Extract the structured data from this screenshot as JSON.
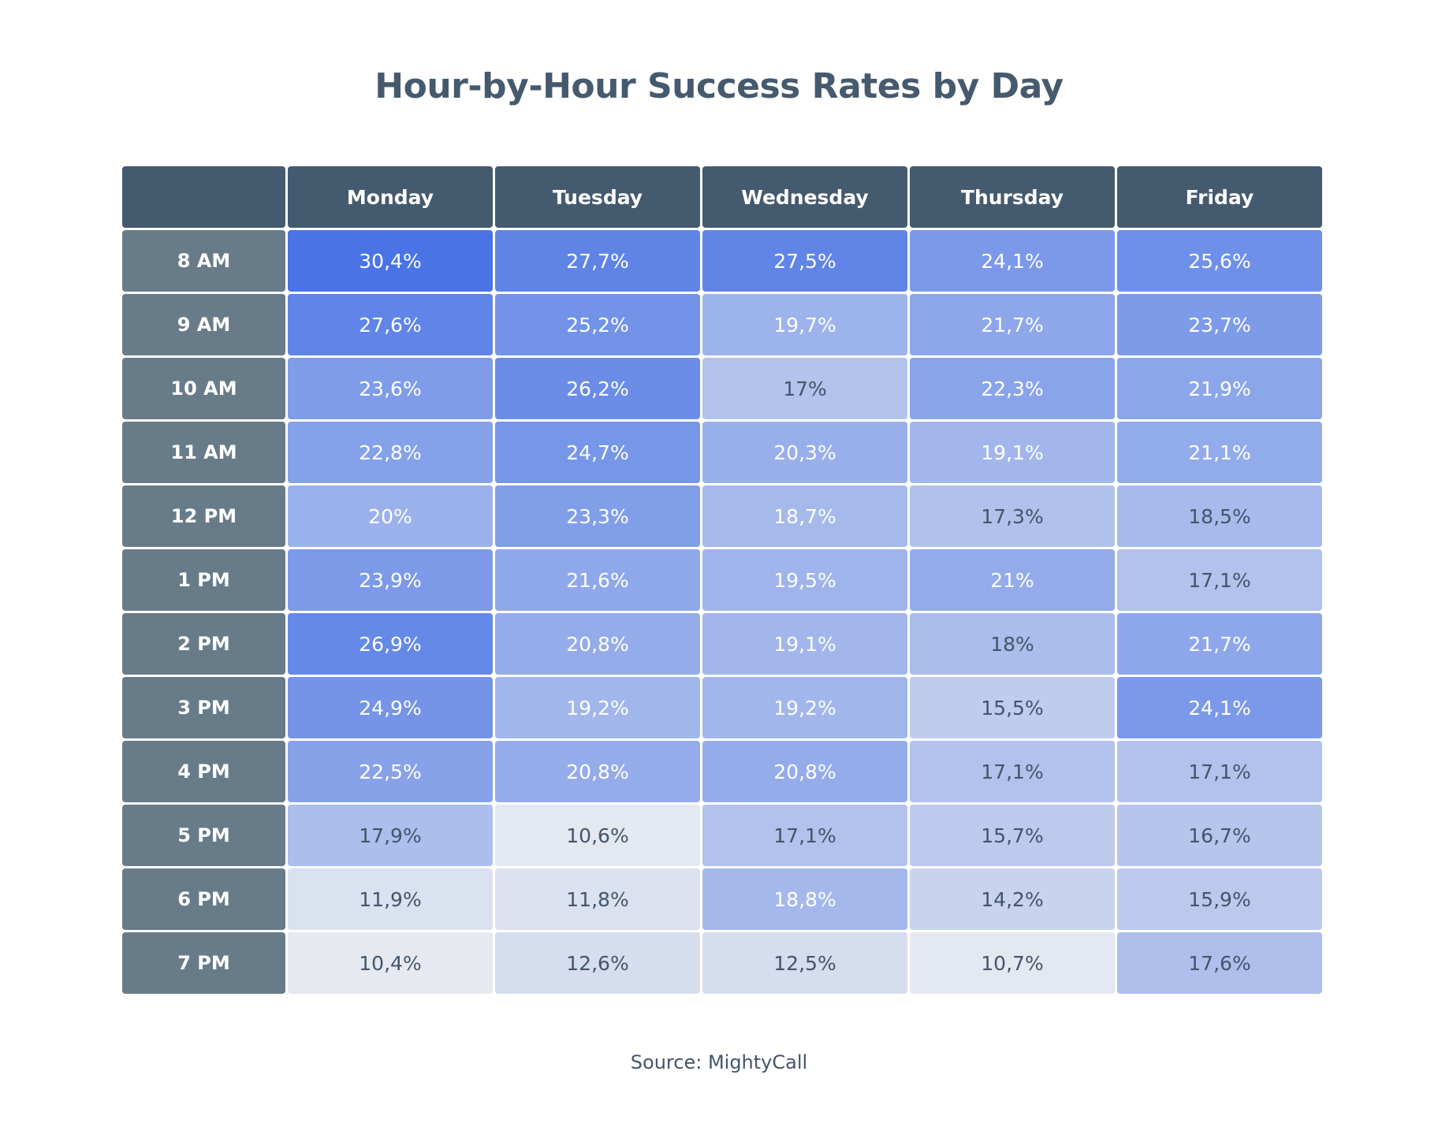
{
  "chart_data": {
    "type": "heatmap",
    "title": "Hour-by-Hour Success Rates by Day",
    "source": "Source: MightyCall",
    "columns": [
      "Monday",
      "Tuesday",
      "Wednesday",
      "Thursday",
      "Friday"
    ],
    "rows": [
      "8 AM",
      "9 AM",
      "10 AM",
      "11 AM",
      "12 PM",
      "1 PM",
      "2 PM",
      "3 PM",
      "4 PM",
      "5 PM",
      "6 PM",
      "7 PM"
    ],
    "values": [
      [
        30.4,
        27.7,
        27.5,
        24.1,
        25.6
      ],
      [
        27.6,
        25.2,
        19.7,
        21.7,
        23.7
      ],
      [
        23.6,
        26.2,
        17,
        22.3,
        21.9
      ],
      [
        22.8,
        24.7,
        20.3,
        19.1,
        21.1
      ],
      [
        20,
        23.3,
        18.7,
        17.3,
        18.5
      ],
      [
        23.9,
        21.6,
        19.5,
        21,
        17.1
      ],
      [
        26.9,
        20.8,
        19.1,
        18,
        21.7
      ],
      [
        24.9,
        19.2,
        19.2,
        15.5,
        24.1
      ],
      [
        22.5,
        20.8,
        20.8,
        17.1,
        17.1
      ],
      [
        17.9,
        10.6,
        17.1,
        15.7,
        16.7
      ],
      [
        11.9,
        11.8,
        18.8,
        14.2,
        15.9
      ],
      [
        10.4,
        12.6,
        12.5,
        10.7,
        17.6
      ]
    ],
    "labels": [
      [
        "30,4%",
        "27,7%",
        "27,5%",
        "24,1%",
        "25,6%"
      ],
      [
        "27,6%",
        "25,2%",
        "19,7%",
        "21,7%",
        "23,7%"
      ],
      [
        "23,6%",
        "26,2%",
        "17%",
        "22,3%",
        "21,9%"
      ],
      [
        "22,8%",
        "24,7%",
        "20,3%",
        "19,1%",
        "21,1%"
      ],
      [
        "20%",
        "23,3%",
        "18,7%",
        "17,3%",
        "18,5%"
      ],
      [
        "23,9%",
        "21,6%",
        "19,5%",
        "21%",
        "17,1%"
      ],
      [
        "26,9%",
        "20,8%",
        "19,1%",
        "18%",
        "21,7%"
      ],
      [
        "24,9%",
        "19,2%",
        "19,2%",
        "15,5%",
        "24,1%"
      ],
      [
        "22,5%",
        "20,8%",
        "20,8%",
        "17,1%",
        "17,1%"
      ],
      [
        "17,9%",
        "10,6%",
        "17,1%",
        "15,7%",
        "16,7%"
      ],
      [
        "11,9%",
        "11,8%",
        "18,8%",
        "14,2%",
        "15,9%"
      ],
      [
        "10,4%",
        "12,6%",
        "12,5%",
        "10,7%",
        "17,6%"
      ]
    ],
    "colors": {
      "header_bg": "#445a6f",
      "row_header_bg": "#687b88",
      "scale_low": "#e9ecf0",
      "scale_high": "#4a74e5",
      "text_light": "#ffffff",
      "text_dark": "#44546a"
    }
  }
}
